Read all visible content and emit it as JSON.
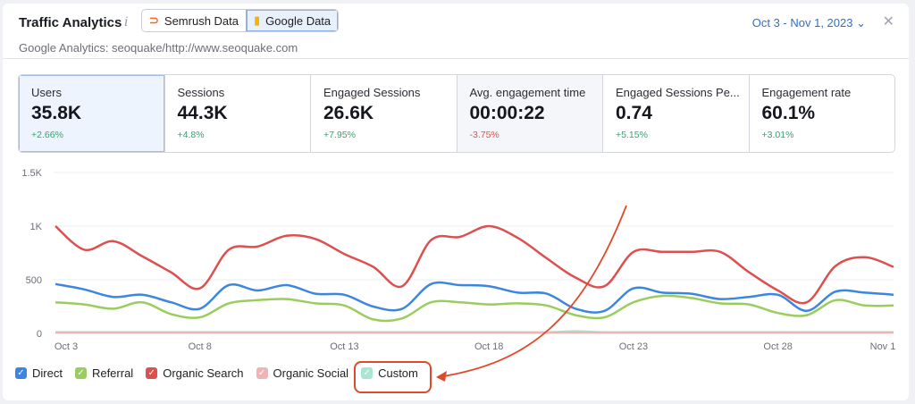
{
  "header": {
    "title": "Traffic Analytics",
    "info_icon": "info-icon",
    "semrush_label": "Semrush Data",
    "google_label": "Google Data",
    "subtitle": "Google Analytics: seoquake/http://www.seoquake.com",
    "date_range": "Oct 3 - Nov 1, 2023"
  },
  "metrics": [
    {
      "label": "Users",
      "value": "35.8K",
      "delta": "+2.66%",
      "trend": "up"
    },
    {
      "label": "Sessions",
      "value": "44.3K",
      "delta": "+4.8%",
      "trend": "up"
    },
    {
      "label": "Engaged Sessions",
      "value": "26.6K",
      "delta": "+7.95%",
      "trend": "up"
    },
    {
      "label": "Avg. engagement time",
      "value": "00:00:22",
      "delta": "-3.75%",
      "trend": "down"
    },
    {
      "label": "Engaged Sessions Pe...",
      "value": "0.74",
      "delta": "+5.15%",
      "trend": "up"
    },
    {
      "label": "Engagement rate",
      "value": "60.1%",
      "delta": "+3.01%",
      "trend": "up"
    }
  ],
  "chart_data": {
    "type": "line",
    "x_start": "Oct 3",
    "x_tick_labels": [
      "Oct 3",
      "Oct 8",
      "Oct 13",
      "Oct 18",
      "Oct 23",
      "Oct 28",
      "Nov 1"
    ],
    "y_tick_labels": [
      "0",
      "500",
      "1K",
      "1.5K"
    ],
    "ylim": [
      0,
      1500
    ],
    "grid": true,
    "legend": "bottom-left",
    "series": [
      {
        "name": "Direct",
        "color": "#3d86e0",
        "values": [
          460,
          410,
          340,
          360,
          290,
          230,
          450,
          400,
          450,
          370,
          360,
          250,
          230,
          460,
          450,
          440,
          380,
          370,
          230,
          210,
          420,
          380,
          370,
          320,
          340,
          360,
          210,
          390,
          380,
          360
        ]
      },
      {
        "name": "Referral",
        "color": "#9acd5e",
        "values": [
          290,
          270,
          230,
          290,
          180,
          150,
          280,
          310,
          320,
          280,
          260,
          130,
          140,
          290,
          290,
          270,
          280,
          260,
          170,
          150,
          290,
          350,
          330,
          280,
          270,
          190,
          170,
          310,
          260,
          260
        ]
      },
      {
        "name": "Organic Search",
        "color": "#dc5050",
        "values": [
          1000,
          780,
          860,
          720,
          570,
          420,
          780,
          810,
          910,
          880,
          740,
          620,
          440,
          870,
          900,
          1000,
          890,
          700,
          520,
          440,
          760,
          760,
          760,
          760,
          570,
          400,
          290,
          630,
          710,
          620
        ]
      },
      {
        "name": "Organic Social",
        "color": "#f0b4b4",
        "values": [
          8,
          8,
          8,
          8,
          8,
          8,
          8,
          8,
          8,
          8,
          8,
          8,
          8,
          8,
          8,
          8,
          8,
          8,
          8,
          8,
          8,
          8,
          8,
          8,
          8,
          8,
          8,
          8,
          8,
          8
        ]
      },
      {
        "name": "Custom",
        "color": "#a8e6cf",
        "values": [
          10,
          10,
          10,
          10,
          10,
          10,
          10,
          10,
          10,
          10,
          10,
          10,
          10,
          10,
          10,
          10,
          10,
          10,
          20,
          10,
          10,
          10,
          10,
          10,
          10,
          10,
          10,
          10,
          10,
          10
        ]
      }
    ]
  },
  "annotation": {
    "color": "#e0492a",
    "target": "Custom"
  }
}
